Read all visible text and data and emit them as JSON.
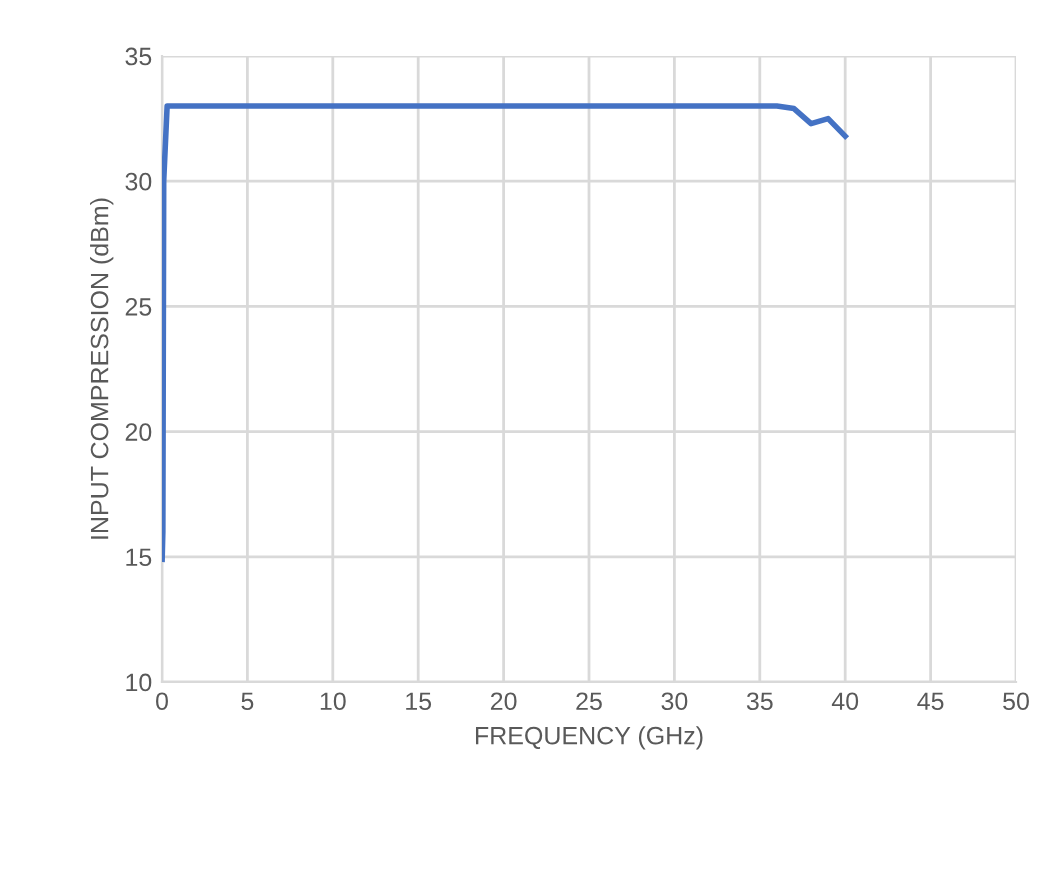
{
  "chart_data": {
    "type": "line",
    "xlabel": "FREQUENCY (GHz)",
    "ylabel": "INPUT COMPRESSION (dBm)",
    "series": [
      {
        "color": "#4472c4",
        "x": [
          0.01,
          0.05,
          0.1,
          0.3,
          1,
          5,
          10,
          15,
          20,
          25,
          30,
          35,
          36,
          37,
          38,
          39,
          40
        ],
        "values": [
          14.9,
          16,
          30,
          33,
          33,
          33,
          33,
          33,
          33,
          33,
          33,
          33,
          33,
          32.9,
          32.3,
          32.5,
          31.8
        ]
      }
    ],
    "xlim": [
      0,
      50
    ],
    "xticks": [
      0,
      5,
      10,
      15,
      20,
      25,
      30,
      35,
      40,
      45,
      50
    ],
    "ylim": [
      10,
      35
    ],
    "yticks": [
      10,
      15,
      20,
      25,
      30,
      35
    ],
    "grid": true,
    "marker": "none",
    "line_style": "solid",
    "legend": false
  }
}
